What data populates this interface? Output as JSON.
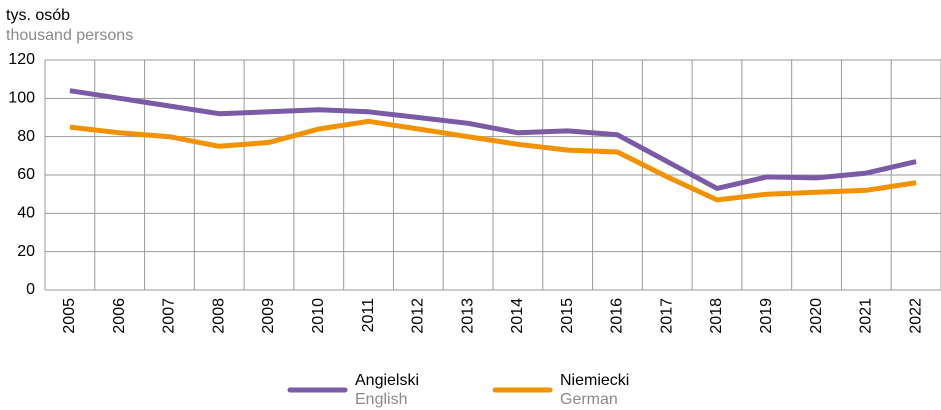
{
  "chart_data": {
    "type": "line",
    "y_label": "tys. osób",
    "y_label_en": "thousand persons",
    "categories": [
      "2005",
      "2006",
      "2007",
      "2008",
      "2009",
      "2010",
      "2011",
      "2012",
      "2013",
      "2014",
      "2015",
      "2016",
      "2017",
      "2018",
      "2019",
      "2020",
      "2021",
      "2022"
    ],
    "series": [
      {
        "name": "Angielski",
        "name_en": "English",
        "color": "#7b5aa6",
        "values": [
          104,
          100,
          96,
          92,
          93,
          94,
          93,
          90,
          87,
          82,
          83,
          81,
          67,
          53,
          59,
          58.5,
          61,
          67
        ]
      },
      {
        "name": "Niemiecki",
        "name_en": "German",
        "color": "#f39200",
        "values": [
          85,
          82,
          80,
          75,
          77,
          84,
          88,
          84,
          80,
          76,
          73,
          72,
          59,
          47,
          50,
          51,
          52,
          56
        ]
      }
    ],
    "ylim": [
      0,
      120
    ],
    "yticks": [
      0,
      20,
      40,
      60,
      80,
      100,
      120
    ],
    "grid": true
  }
}
